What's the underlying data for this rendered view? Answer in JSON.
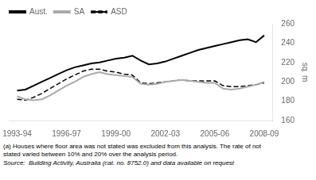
{
  "chart_data": {
    "type": "line",
    "ylabel": "sq. m",
    "x": [
      0,
      0.5,
      1,
      1.5,
      2,
      2.5,
      3,
      3.5,
      4,
      4.5,
      5,
      5.5,
      6,
      6.5,
      7,
      7.5,
      8,
      8.5,
      9,
      9.5,
      10,
      10.5,
      11,
      11.5,
      12,
      12.5,
      13,
      13.5,
      14,
      14.5,
      15
    ],
    "series": [
      {
        "name": "Aust.",
        "color": "#000000",
        "line_style": "solid",
        "values": [
          191,
          192,
          196,
          200,
          204,
          208,
          212,
          215,
          217,
          219,
          220,
          222,
          224,
          225,
          227,
          222,
          218,
          219,
          221,
          224,
          227,
          230,
          233,
          235,
          237,
          239,
          241,
          243,
          244,
          241,
          248
        ]
      },
      {
        "name": "SA",
        "color": "#aaaaaa",
        "line_style": "solid",
        "values": [
          185,
          182,
          181,
          182,
          186,
          191,
          196,
          200,
          205,
          208,
          210,
          208,
          207,
          206,
          205,
          198,
          197,
          198,
          200,
          201,
          202,
          201,
          200,
          199,
          199,
          193,
          192,
          193,
          195,
          197,
          200
        ]
      },
      {
        "name": "ASD",
        "color": "#000000",
        "line_style": "dashed",
        "values": [
          182,
          181,
          184,
          188,
          193,
          198,
          203,
          207,
          211,
          213,
          213,
          211,
          210,
          208,
          207,
          199,
          198,
          199,
          200,
          201,
          202,
          201,
          201,
          201,
          201,
          196,
          195,
          195,
          196,
          197,
          199
        ]
      }
    ],
    "xlim": [
      -0.5,
      15.5
    ],
    "xticks": [
      {
        "value": 0,
        "label": "1993-94"
      },
      {
        "value": 3,
        "label": "1996-97"
      },
      {
        "value": 6,
        "label": "1999-00"
      },
      {
        "value": 9,
        "label": "2002-03"
      },
      {
        "value": 12,
        "label": "2005-06"
      },
      {
        "value": 15,
        "label": "2008-09"
      }
    ],
    "ylim": [
      160,
      260
    ],
    "yticks": [
      160,
      180,
      200,
      220,
      240,
      260
    ],
    "grid": false,
    "legend": "upper left",
    "annotations": [
      "(a) Houses where floor area was not stated was excluded from this analysis. The rate of not\nstated varied between 10% and 20% over the analysis period.",
      "Source:  Building Activity, Australia (cat. no. 8752.0) and data available on request"
    ]
  }
}
